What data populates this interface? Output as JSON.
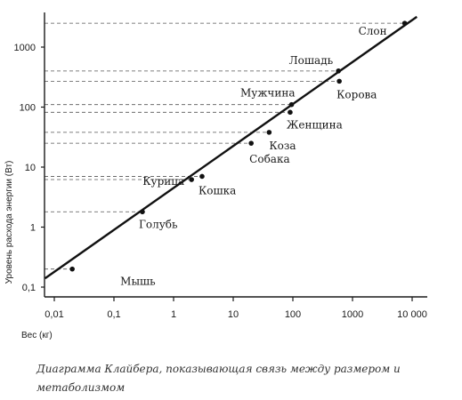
{
  "chart_data": {
    "type": "scatter",
    "xscale": "log",
    "yscale": "log",
    "xlabel": "Вес (кг)",
    "ylabel": "Уровень расхода энергии (Вт)",
    "xlim": [
      0.01,
      12000
    ],
    "ylim": [
      0.14,
      3000
    ],
    "grid": false,
    "x_ticks": [
      0.01,
      0.1,
      1,
      10,
      100,
      1000,
      10000
    ],
    "x_tick_labels": [
      "0,01",
      "0,1",
      "1",
      "10",
      "100",
      "1000",
      "10 000"
    ],
    "y_ticks": [
      0.1,
      1,
      10,
      100,
      1000
    ],
    "y_tick_labels": [
      "0,1",
      "1",
      "10",
      "100",
      "1000"
    ],
    "trend_line": {
      "x": [
        0.007,
        12000
      ],
      "y": [
        0.14,
        3200
      ]
    },
    "points": [
      {
        "label": "Мышь",
        "x": 0.02,
        "y": 0.2
      },
      {
        "label": "Голубь",
        "x": 0.3,
        "y": 1.8
      },
      {
        "label": "Курица",
        "x": 2,
        "y": 6.2
      },
      {
        "label": "Кошка",
        "x": 3,
        "y": 7
      },
      {
        "label": "Собака",
        "x": 20,
        "y": 25
      },
      {
        "label": "Коза",
        "x": 40,
        "y": 38
      },
      {
        "label": "Женщина",
        "x": 90,
        "y": 82
      },
      {
        "label": "Мужчина",
        "x": 95,
        "y": 110
      },
      {
        "label": "Корова",
        "x": 600,
        "y": 270
      },
      {
        "label": "Лошадь",
        "x": 580,
        "y": 400
      },
      {
        "label": "Слон",
        "x": 7500,
        "y": 2500
      }
    ],
    "caption": "Диаграмма Клайбера, показывающая связь между размером и метаболизмом"
  }
}
